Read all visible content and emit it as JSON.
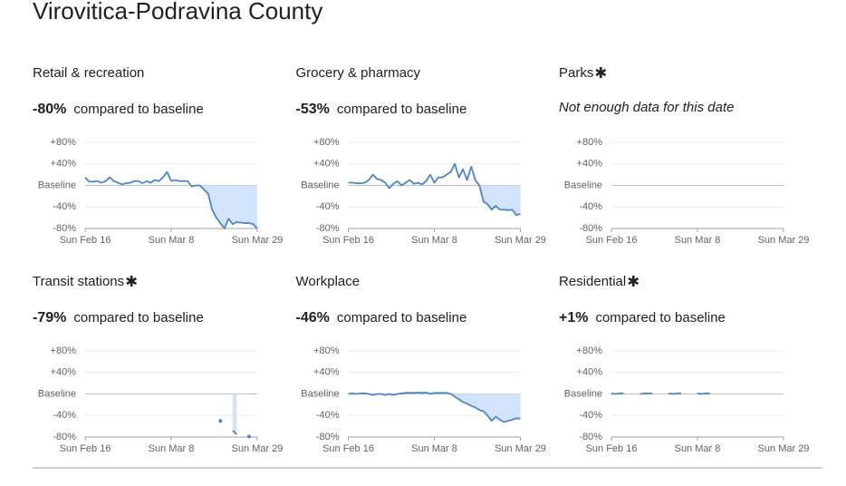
{
  "title": "Virovitica-Podravina County",
  "chart_data": [
    {
      "type": "line",
      "title": "Retail & recreation",
      "headline": {
        "value": -80,
        "label": "-80%"
      },
      "headline_text": "compared to baseline",
      "color": "#4a86d0",
      "fill": "#d2e3fc",
      "grid": true,
      "categories": [
        "Sun Feb 16",
        null,
        null,
        null,
        null,
        null,
        null,
        null,
        null,
        null,
        null,
        null,
        null,
        null,
        null,
        null,
        null,
        null,
        null,
        null,
        null,
        "Sun Mar 8",
        null,
        null,
        null,
        null,
        null,
        null,
        null,
        null,
        null,
        null,
        null,
        null,
        null,
        null,
        null,
        null,
        null,
        null,
        null,
        null,
        "Sun Mar 29"
      ],
      "xticks": [
        0,
        21,
        42
      ],
      "values": [
        15,
        7,
        7,
        8,
        5,
        8,
        15,
        8,
        5,
        2,
        4,
        5,
        8,
        8,
        4,
        8,
        5,
        10,
        8,
        15,
        25,
        8,
        10,
        8,
        8,
        8,
        -2,
        0,
        0,
        -8,
        -15,
        -45,
        -60,
        -70,
        -80,
        -62,
        -72,
        -68,
        -69,
        -70,
        -70,
        -72,
        -80
      ],
      "ylim": [
        -80,
        80
      ],
      "yticks": [
        {
          "value": 80,
          "label": "+80%"
        },
        {
          "value": 40,
          "label": "+40%"
        },
        {
          "value": 0,
          "label": "Baseline"
        },
        {
          "value": -40,
          "label": "-40%"
        },
        {
          "value": -80,
          "label": "-80%"
        }
      ]
    },
    {
      "type": "line",
      "title": "Grocery & pharmacy",
      "headline": {
        "value": -53,
        "label": "-53%"
      },
      "headline_text": "compared to baseline",
      "color": "#4a86d0",
      "fill": "#d2e3fc",
      "grid": true,
      "categories": [
        "Sun Feb 16",
        null,
        null,
        null,
        null,
        null,
        null,
        null,
        null,
        null,
        null,
        null,
        null,
        null,
        null,
        null,
        null,
        null,
        null,
        null,
        null,
        "Sun Mar 8",
        null,
        null,
        null,
        null,
        null,
        null,
        null,
        null,
        null,
        null,
        null,
        null,
        null,
        null,
        null,
        null,
        null,
        null,
        null,
        null,
        "Sun Mar 29"
      ],
      "xticks": [
        0,
        21,
        42
      ],
      "values": [
        5,
        5,
        4,
        4,
        5,
        10,
        20,
        12,
        10,
        5,
        -5,
        3,
        8,
        0,
        5,
        10,
        3,
        5,
        2,
        8,
        20,
        5,
        15,
        15,
        20,
        25,
        40,
        15,
        30,
        10,
        35,
        10,
        0,
        -30,
        -35,
        -45,
        -38,
        -45,
        -45,
        -46,
        -45,
        -55,
        -53
      ],
      "ylim": [
        -80,
        80
      ],
      "yticks": [
        {
          "value": 80,
          "label": "+80%"
        },
        {
          "value": 40,
          "label": "+40%"
        },
        {
          "value": 0,
          "label": "Baseline"
        },
        {
          "value": -40,
          "label": "-40%"
        },
        {
          "value": -80,
          "label": "-80%"
        }
      ]
    },
    {
      "type": "line",
      "title": "Parks",
      "note_icon": true,
      "note": "Not enough data for this date",
      "color": "#4a86d0",
      "fill": "#d2e3fc",
      "grid": true,
      "categories": [
        "Sun Feb 16",
        null,
        null,
        null,
        null,
        null,
        null,
        null,
        null,
        null,
        null,
        null,
        null,
        null,
        null,
        null,
        null,
        null,
        null,
        null,
        null,
        "Sun Mar 8",
        null,
        null,
        null,
        null,
        null,
        null,
        null,
        null,
        null,
        null,
        null,
        null,
        null,
        null,
        null,
        null,
        null,
        null,
        null,
        null,
        "Sun Mar 29"
      ],
      "xticks": [
        0,
        21,
        42
      ],
      "ylim": [
        -80,
        80
      ],
      "yticks": [
        {
          "value": 80,
          "label": "+80%"
        },
        {
          "value": 40,
          "label": "+40%"
        },
        {
          "value": 0,
          "label": "Baseline"
        },
        {
          "value": -40,
          "label": "-40%"
        },
        {
          "value": -80,
          "label": "-80%"
        }
      ]
    },
    {
      "type": "line",
      "title": "Transit stations",
      "note_icon": true,
      "headline": {
        "value": -79,
        "label": "-79%"
      },
      "headline_text": "compared to baseline",
      "color": "#4a86d0",
      "fill": "#d2e3fc",
      "grid": true,
      "categories": [
        "Sun Feb 16",
        null,
        null,
        null,
        null,
        null,
        null,
        null,
        null,
        null,
        null,
        null,
        null,
        null,
        null,
        null,
        null,
        null,
        null,
        null,
        null,
        "Sun Mar 8",
        null,
        null,
        null,
        null,
        null,
        null,
        null,
        null,
        null,
        null,
        null,
        null,
        null,
        null,
        null,
        null,
        null,
        null,
        null,
        null,
        "Sun Mar 29"
      ],
      "xticks": [
        0,
        21,
        42
      ],
      "values": [
        null,
        null,
        null,
        null,
        null,
        null,
        null,
        null,
        null,
        null,
        null,
        null,
        null,
        null,
        null,
        null,
        null,
        null,
        null,
        null,
        null,
        null,
        null,
        null,
        null,
        null,
        null,
        null,
        null,
        null,
        null,
        null,
        null,
        -50,
        null,
        null,
        -68,
        -75,
        null,
        null,
        -79,
        null,
        null
      ],
      "ylim": [
        -80,
        80
      ],
      "yticks": [
        {
          "value": 80,
          "label": "+80%"
        },
        {
          "value": 40,
          "label": "+40%"
        },
        {
          "value": 0,
          "label": "Baseline"
        },
        {
          "value": -40,
          "label": "-40%"
        },
        {
          "value": -80,
          "label": "-80%"
        }
      ]
    },
    {
      "type": "line",
      "title": "Workplace",
      "headline": {
        "value": -46,
        "label": "-46%"
      },
      "headline_text": "compared to baseline",
      "color": "#4a86d0",
      "fill": "#d2e3fc",
      "grid": true,
      "categories": [
        "Sun Feb 16",
        null,
        null,
        null,
        null,
        null,
        null,
        null,
        null,
        null,
        null,
        null,
        null,
        null,
        null,
        null,
        null,
        null,
        null,
        null,
        null,
        "Sun Mar 8",
        null,
        null,
        null,
        null,
        null,
        null,
        null,
        null,
        null,
        null,
        null,
        null,
        null,
        null,
        null,
        null,
        null,
        null,
        null,
        null,
        "Sun Mar 29"
      ],
      "xticks": [
        0,
        21,
        42
      ],
      "values": [
        0,
        1,
        0,
        1,
        1,
        0,
        -2,
        0,
        0,
        -2,
        0,
        -2,
        0,
        1,
        2,
        2,
        2,
        3,
        2,
        3,
        0,
        2,
        2,
        2,
        2,
        0,
        -5,
        -10,
        -15,
        -18,
        -22,
        -25,
        -30,
        -32,
        -40,
        -50,
        -42,
        -48,
        -52,
        -50,
        -48,
        -45,
        -46
      ],
      "ylim": [
        -80,
        80
      ],
      "yticks": [
        {
          "value": 80,
          "label": "+80%"
        },
        {
          "value": 40,
          "label": "+40%"
        },
        {
          "value": 0,
          "label": "Baseline"
        },
        {
          "value": -40,
          "label": "-40%"
        },
        {
          "value": -80,
          "label": "-80%"
        }
      ]
    },
    {
      "type": "line",
      "title": "Residential",
      "note_icon": true,
      "headline": {
        "value": 1,
        "label": "+1%"
      },
      "headline_text": "compared to baseline",
      "color": "#4a86d0",
      "fill": "#d2e3fc",
      "grid": true,
      "categories": [
        "Sun Feb 16",
        null,
        null,
        null,
        null,
        null,
        null,
        null,
        null,
        null,
        null,
        null,
        null,
        null,
        null,
        null,
        null,
        null,
        null,
        null,
        null,
        "Sun Mar 8",
        null,
        null,
        null,
        null,
        null,
        null,
        null,
        null,
        null,
        null,
        null,
        null,
        null,
        null,
        null,
        null,
        null,
        null,
        null,
        null,
        "Sun Mar 29"
      ],
      "xticks": [
        0,
        21,
        42
      ],
      "values": [
        1,
        0,
        1,
        1,
        null,
        null,
        null,
        0,
        1,
        1,
        1,
        null,
        null,
        null,
        1,
        0,
        1,
        1,
        null,
        null,
        null,
        1,
        0,
        1,
        1,
        null,
        null,
        null,
        null,
        null,
        null,
        null,
        null,
        null,
        null,
        null,
        null,
        null,
        null,
        null,
        null,
        null,
        null
      ],
      "ylim": [
        -80,
        80
      ],
      "yticks": [
        {
          "value": 80,
          "label": "+80%"
        },
        {
          "value": 40,
          "label": "+40%"
        },
        {
          "value": 0,
          "label": "Baseline"
        },
        {
          "value": -40,
          "label": "-40%"
        },
        {
          "value": -80,
          "label": "-80%"
        }
      ]
    }
  ]
}
